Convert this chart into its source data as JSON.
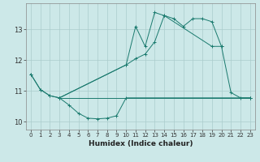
{
  "xlabel": "Humidex (Indice chaleur)",
  "background_color": "#cce8e8",
  "grid_color": "#aacccc",
  "line_color": "#1a7a6e",
  "xlim": [
    -0.5,
    23.5
  ],
  "ylim": [
    9.75,
    13.85
  ],
  "xticks": [
    0,
    1,
    2,
    3,
    4,
    5,
    6,
    7,
    8,
    9,
    10,
    11,
    12,
    13,
    14,
    15,
    16,
    17,
    18,
    19,
    20,
    21,
    22,
    23
  ],
  "yticks": [
    10,
    11,
    12,
    13
  ],
  "curve1_x": [
    0,
    1,
    2,
    3,
    4,
    5,
    6,
    7,
    8,
    9,
    10,
    23
  ],
  "curve1_y": [
    11.55,
    11.05,
    10.85,
    10.78,
    10.55,
    10.28,
    10.12,
    10.1,
    10.12,
    10.2,
    10.78,
    10.78
  ],
  "curve2_x": [
    0,
    1,
    2,
    3,
    10,
    11,
    12,
    13,
    14,
    15,
    16,
    17,
    18,
    19,
    20,
    21,
    22,
    23
  ],
  "curve2_y": [
    11.55,
    11.05,
    10.85,
    10.78,
    11.85,
    13.1,
    12.45,
    13.55,
    13.45,
    13.35,
    13.1,
    13.35,
    13.35,
    13.25,
    12.45,
    10.95,
    10.78,
    10.78
  ],
  "curve3_x": [
    3,
    10,
    11,
    12,
    13,
    14,
    19,
    20
  ],
  "curve3_y": [
    10.78,
    11.85,
    12.05,
    12.2,
    12.6,
    13.45,
    12.45,
    12.45
  ],
  "curve4_x": [
    3,
    23
  ],
  "curve4_y": [
    10.78,
    10.78
  ]
}
